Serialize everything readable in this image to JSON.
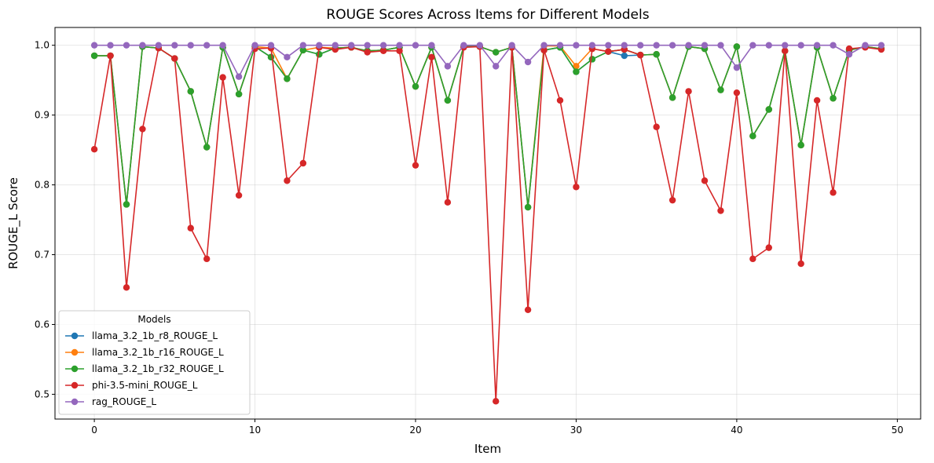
{
  "chart_data": {
    "type": "line",
    "title": "ROUGE Scores Across Items for Different Models",
    "xlabel": "Item",
    "ylabel": "ROUGE_L Score",
    "xlim": [
      -2.45,
      51.45
    ],
    "ylim": [
      0.4645,
      1.0255
    ],
    "xticks": [
      0,
      10,
      20,
      30,
      40,
      50
    ],
    "yticks": [
      0.5,
      0.6,
      0.7,
      0.8,
      0.9,
      1.0
    ],
    "xtick_labels": [
      "0",
      "10",
      "20",
      "30",
      "40",
      "50"
    ],
    "ytick_labels": [
      "0.5",
      "0.6",
      "0.7",
      "0.8",
      "0.9",
      "1.0"
    ],
    "grid": true,
    "legend_title": "Models",
    "legend_position": "lower-left",
    "x": [
      0,
      1,
      2,
      3,
      4,
      5,
      6,
      7,
      8,
      9,
      10,
      11,
      12,
      13,
      14,
      15,
      16,
      17,
      18,
      19,
      20,
      21,
      22,
      23,
      24,
      25,
      26,
      27,
      28,
      29,
      30,
      31,
      32,
      33,
      34,
      35,
      36,
      37,
      38,
      39,
      40,
      41,
      42,
      43,
      44,
      45,
      46,
      47,
      48,
      49
    ],
    "series": [
      {
        "name": "llama_3.2_1b_r8_ROUGE_L",
        "color": "#1f77b4",
        "values": [
          0.985,
          0.985,
          0.772,
          0.998,
          0.996,
          0.981,
          0.934,
          0.854,
          0.997,
          0.93,
          0.998,
          0.983,
          0.952,
          0.993,
          0.987,
          0.996,
          0.997,
          0.992,
          0.993,
          0.997,
          0.941,
          0.997,
          0.921,
          0.998,
          0.998,
          0.99,
          0.997,
          0.768,
          0.993,
          0.997,
          0.962,
          0.98,
          0.991,
          0.985,
          0.986,
          0.987,
          0.925,
          0.998,
          0.995,
          0.936,
          0.998,
          0.87,
          0.908,
          0.992,
          0.857,
          0.997,
          0.924,
          0.993,
          0.998,
          0.995
        ]
      },
      {
        "name": "llama_3.2_1b_r16_ROUGE_L",
        "color": "#ff7f0e",
        "values": [
          0.985,
          0.985,
          0.772,
          0.998,
          0.996,
          0.981,
          0.934,
          0.854,
          0.997,
          0.93,
          0.998,
          0.996,
          0.952,
          0.993,
          0.997,
          0.996,
          0.997,
          0.992,
          0.993,
          0.997,
          0.941,
          0.997,
          0.921,
          0.998,
          0.998,
          0.99,
          0.997,
          0.768,
          0.999,
          0.999,
          0.97,
          0.995,
          0.991,
          0.994,
          0.986,
          0.987,
          0.925,
          0.998,
          0.995,
          0.936,
          0.998,
          0.87,
          0.908,
          0.992,
          0.857,
          0.997,
          0.924,
          0.993,
          0.998,
          0.995
        ]
      },
      {
        "name": "llama_3.2_1b_r32_ROUGE_L",
        "color": "#2ca02c",
        "values": [
          0.985,
          0.985,
          0.772,
          0.998,
          0.996,
          0.981,
          0.934,
          0.854,
          0.997,
          0.93,
          0.998,
          0.983,
          0.952,
          0.993,
          0.987,
          0.996,
          0.997,
          0.992,
          0.993,
          0.997,
          0.941,
          0.997,
          0.921,
          0.998,
          0.998,
          0.99,
          0.997,
          0.768,
          0.993,
          0.997,
          0.962,
          0.98,
          0.991,
          0.994,
          0.986,
          0.987,
          0.925,
          0.998,
          0.995,
          0.936,
          0.998,
          0.87,
          0.908,
          0.992,
          0.857,
          0.997,
          0.924,
          0.993,
          0.998,
          0.995
        ]
      },
      {
        "name": "phi-3.5-mini_ROUGE_L",
        "color": "#d62728",
        "values": [
          0.851,
          0.985,
          0.653,
          0.88,
          0.996,
          0.981,
          0.738,
          0.694,
          0.954,
          0.785,
          0.995,
          0.996,
          0.806,
          0.831,
          0.997,
          0.994,
          0.997,
          0.99,
          0.992,
          0.992,
          0.828,
          0.983,
          0.775,
          0.997,
          0.998,
          0.49,
          0.997,
          0.621,
          0.993,
          0.921,
          0.797,
          0.995,
          0.991,
          0.994,
          0.986,
          0.883,
          0.778,
          0.934,
          0.806,
          0.763,
          0.932,
          0.694,
          0.71,
          0.992,
          0.687,
          0.921,
          0.789,
          0.995,
          0.997,
          0.994
        ]
      },
      {
        "name": "rag_ROUGE_L",
        "color": "#9467bd",
        "values": [
          1.0,
          1.0,
          1.0,
          1.0,
          1.0,
          1.0,
          1.0,
          1.0,
          1.0,
          0.955,
          1.0,
          1.0,
          0.983,
          1.0,
          1.0,
          1.0,
          1.0,
          1.0,
          1.0,
          1.0,
          1.0,
          1.0,
          0.97,
          1.0,
          1.0,
          0.97,
          1.0,
          0.976,
          1.0,
          1.0,
          1.0,
          1.0,
          1.0,
          1.0,
          1.0,
          1.0,
          1.0,
          1.0,
          1.0,
          1.0,
          0.968,
          1.0,
          1.0,
          1.0,
          1.0,
          1.0,
          1.0,
          0.987,
          1.0,
          1.0
        ]
      }
    ]
  }
}
